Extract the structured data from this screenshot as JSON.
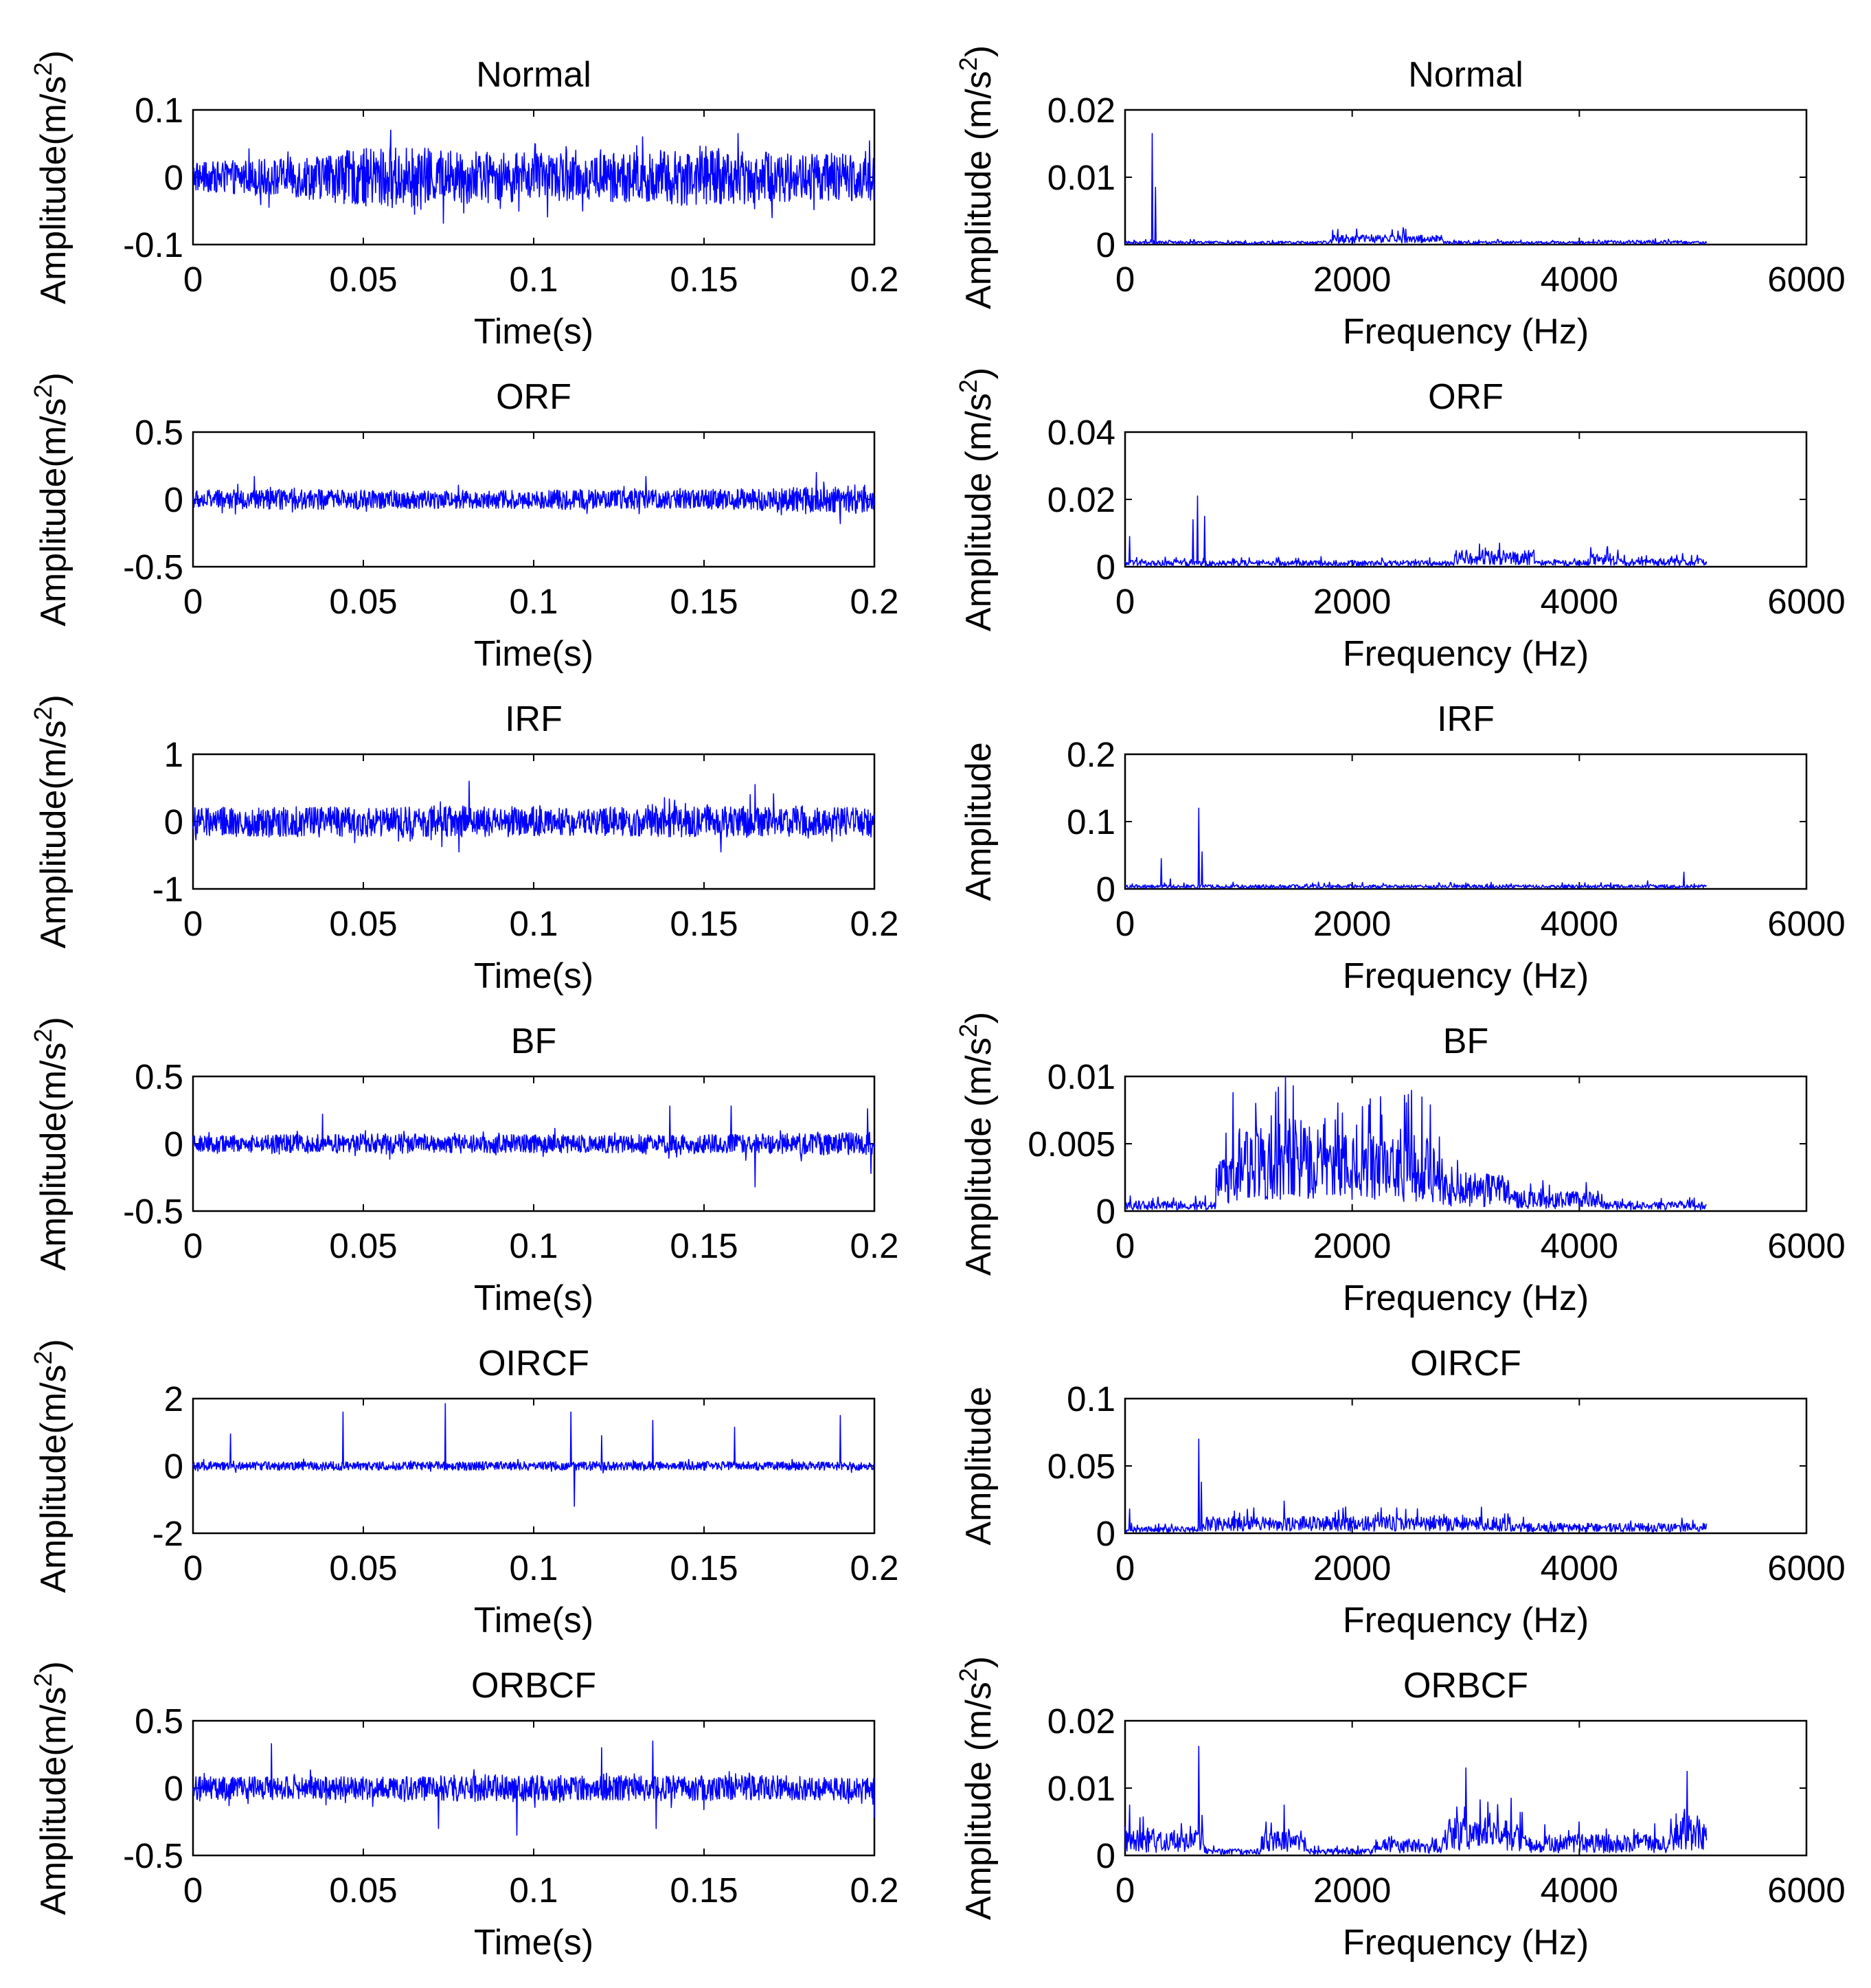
{
  "figure": {
    "trace_color": "#0000ff",
    "axis_color": "#000000"
  },
  "chart_data": [
    {
      "type": "line",
      "domain": "time",
      "title": "Normal",
      "xlabel": "Time(s)",
      "ylabel": "Amplitude(m/s^2)",
      "ylabel_parts": [
        "Amplitude(m/s",
        "2",
        ")"
      ],
      "xlim": [
        0,
        0.2
      ],
      "ylim": [
        -0.1,
        0.1
      ],
      "xticks": [
        0,
        0.05,
        0.1,
        0.15,
        0.2
      ],
      "xtick_labels": [
        "0",
        "0.05",
        "0.1",
        "0.15",
        "0.2"
      ],
      "yticks": [
        -0.1,
        0,
        0.1
      ],
      "ytick_labels": [
        "-0.1",
        "0",
        "0.1"
      ],
      "signal": {
        "duration": 0.2,
        "amplitude_envelope": [
          0.025,
          0.035,
          0.055,
          0.045,
          0.04,
          0.05,
          0.045,
          0.04
        ],
        "spikes": [
          [
            0.058,
            0.07
          ],
          [
            0.065,
            -0.055
          ],
          [
            0.132,
            0.06
          ],
          [
            0.16,
            0.065
          ],
          [
            0.17,
            -0.06
          ]
        ]
      }
    },
    {
      "type": "line",
      "domain": "frequency",
      "title": "Normal",
      "xlabel": "Frequency (Hz)",
      "ylabel": "Amplitude (m/s^2)",
      "ylabel_parts": [
        "Amplitude (m/s",
        "2",
        ")"
      ],
      "xlim": [
        0,
        6000
      ],
      "ylim": [
        0,
        0.02
      ],
      "xticks": [
        0,
        2000,
        4000,
        6000
      ],
      "xtick_labels": [
        "0",
        "2000",
        "4000",
        "6000"
      ],
      "yticks": [
        0,
        0.01,
        0.02
      ],
      "ytick_labels": [
        "0",
        "0.01",
        "0.02"
      ],
      "spectrum": {
        "max_freq": 5120,
        "floor": 0.0004,
        "bands": [
          [
            1800,
            2800,
            0.0012
          ],
          [
            4200,
            4900,
            0.0005
          ]
        ],
        "peaks": [
          [
            240,
            0.0165
          ],
          [
            270,
            0.0085
          ],
          [
            2450,
            0.0025
          ],
          [
            2350,
            0.0022
          ]
        ]
      }
    },
    {
      "type": "line",
      "domain": "time",
      "title": "ORF",
      "xlabel": "Time(s)",
      "ylabel": "Amplitude(m/s^2)",
      "ylabel_parts": [
        "Amplitude(m/s",
        "2",
        ")"
      ],
      "xlim": [
        0,
        0.2
      ],
      "ylim": [
        -0.5,
        0.5
      ],
      "xticks": [
        0,
        0.05,
        0.1,
        0.15,
        0.2
      ],
      "xtick_labels": [
        "0",
        "0.05",
        "0.1",
        "0.15",
        "0.2"
      ],
      "yticks": [
        -0.5,
        0,
        0.5
      ],
      "ytick_labels": [
        "-0.5",
        "0",
        "0.5"
      ],
      "signal": {
        "duration": 0.2,
        "amplitude_envelope": [
          0.08,
          0.09,
          0.08,
          0.08,
          0.09,
          0.08,
          0.1,
          0.13
        ],
        "spikes": [
          [
            0.018,
            0.17
          ],
          [
            0.183,
            0.2
          ],
          [
            0.19,
            -0.18
          ],
          [
            0.133,
            0.17
          ]
        ]
      }
    },
    {
      "type": "line",
      "domain": "frequency",
      "title": "ORF",
      "xlabel": "Frequency (Hz)",
      "ylabel": "Amplitude (m/s^2)",
      "ylabel_parts": [
        "Amplitude (m/s",
        "2",
        ")"
      ],
      "xlim": [
        0,
        6000
      ],
      "ylim": [
        0,
        0.04
      ],
      "xticks": [
        0,
        2000,
        4000,
        6000
      ],
      "xtick_labels": [
        "0",
        "2000",
        "4000",
        "6000"
      ],
      "yticks": [
        0,
        0.02,
        0.04
      ],
      "ytick_labels": [
        "0",
        "0.02",
        "0.04"
      ],
      "spectrum": {
        "max_freq": 5120,
        "floor": 0.0015,
        "bands": [
          [
            2900,
            3600,
            0.004
          ],
          [
            4100,
            4400,
            0.003
          ],
          [
            4500,
            5120,
            0.002
          ]
        ],
        "peaks": [
          [
            40,
            0.009
          ],
          [
            640,
            0.021
          ],
          [
            600,
            0.014
          ],
          [
            700,
            0.015
          ],
          [
            3300,
            0.007
          ],
          [
            4250,
            0.006
          ]
        ]
      }
    },
    {
      "type": "line",
      "domain": "time",
      "title": "IRF",
      "xlabel": "Time(s)",
      "ylabel": "Amplitude(m/s^2)",
      "ylabel_parts": [
        "Amplitude(m/s",
        "2",
        ")"
      ],
      "xlim": [
        0,
        0.2
      ],
      "ylim": [
        -1,
        1
      ],
      "xticks": [
        0,
        0.05,
        0.1,
        0.15,
        0.2
      ],
      "xtick_labels": [
        "0",
        "0.05",
        "0.1",
        "0.15",
        "0.2"
      ],
      "yticks": [
        -1,
        0,
        1
      ],
      "ytick_labels": [
        "-1",
        "0",
        "1"
      ],
      "signal": {
        "duration": 0.2,
        "amplitude_envelope": [
          0.25,
          0.28,
          0.25,
          0.28,
          0.25,
          0.27,
          0.28,
          0.25
        ],
        "spikes": [
          [
            0.081,
            0.6
          ],
          [
            0.078,
            -0.45
          ],
          [
            0.165,
            0.55
          ],
          [
            0.155,
            -0.45
          ]
        ]
      }
    },
    {
      "type": "line",
      "domain": "frequency",
      "title": "IRF",
      "xlabel": "Frequency (Hz)",
      "ylabel": "Amplitude",
      "ylabel_parts": [
        "Amplitude",
        "",
        ""
      ],
      "xlim": [
        0,
        6000
      ],
      "ylim": [
        0,
        0.2
      ],
      "xticks": [
        0,
        2000,
        4000,
        6000
      ],
      "xtick_labels": [
        "0",
        "2000",
        "4000",
        "6000"
      ],
      "yticks": [
        0,
        0.1,
        0.2
      ],
      "ytick_labels": [
        "0",
        "0.1",
        "0.2"
      ],
      "spectrum": {
        "max_freq": 5120,
        "floor": 0.005,
        "bands": [
          [
            4600,
            5120,
            0.004
          ]
        ],
        "peaks": [
          [
            320,
            0.045
          ],
          [
            650,
            0.12
          ],
          [
            680,
            0.055
          ],
          [
            400,
            0.015
          ],
          [
            4920,
            0.025
          ],
          [
            4600,
            0.012
          ]
        ]
      }
    },
    {
      "type": "line",
      "domain": "time",
      "title": "BF",
      "xlabel": "Time(s)",
      "ylabel": "Amplitude(m/s^2)",
      "ylabel_parts": [
        "Amplitude(m/s",
        "2",
        ")"
      ],
      "xlim": [
        0,
        0.2
      ],
      "ylim": [
        -0.5,
        0.5
      ],
      "xticks": [
        0,
        0.05,
        0.1,
        0.15,
        0.2
      ],
      "xtick_labels": [
        "0",
        "0.05",
        "0.1",
        "0.15",
        "0.2"
      ],
      "yticks": [
        -0.5,
        0,
        0.5
      ],
      "ytick_labels": [
        "-0.5",
        "0",
        "0.5"
      ],
      "signal": {
        "duration": 0.2,
        "amplitude_envelope": [
          0.07,
          0.08,
          0.09,
          0.08,
          0.08,
          0.08,
          0.09,
          0.1
        ],
        "spikes": [
          [
            0.038,
            0.22
          ],
          [
            0.14,
            0.28
          ],
          [
            0.158,
            0.28
          ],
          [
            0.165,
            -0.32
          ],
          [
            0.198,
            0.26
          ],
          [
            0.199,
            -0.22
          ]
        ]
      }
    },
    {
      "type": "line",
      "domain": "frequency",
      "title": "BF",
      "xlabel": "Frequency (Hz)",
      "ylabel": "Amplitude (m/s^2)",
      "ylabel_parts": [
        "Amplitude (m/s",
        "2",
        ")"
      ],
      "xlim": [
        0,
        6000
      ],
      "ylim": [
        0,
        0.01
      ],
      "xticks": [
        0,
        2000,
        4000,
        6000
      ],
      "xtick_labels": [
        "0",
        "2000",
        "4000",
        "6000"
      ],
      "yticks": [
        0,
        0.005,
        0.01
      ],
      "ytick_labels": [
        "0",
        "0.005",
        "0.01"
      ],
      "spectrum": {
        "max_freq": 5120,
        "floor": 0.0003,
        "bands": [
          [
            0,
            800,
            0.0006
          ],
          [
            800,
            1000,
            0.0035
          ],
          [
            1000,
            1800,
            0.0055
          ],
          [
            1800,
            2800,
            0.0045
          ],
          [
            2800,
            3400,
            0.0022
          ],
          [
            3400,
            4200,
            0.0012
          ],
          [
            4200,
            5120,
            0.0006
          ]
        ],
        "peaks": [
          [
            950,
            0.0088
          ],
          [
            1350,
            0.0092
          ],
          [
            1480,
            0.0093
          ],
          [
            2250,
            0.0085
          ],
          [
            2460,
            0.0086
          ],
          [
            1150,
            0.008
          ]
        ]
      }
    },
    {
      "type": "line",
      "domain": "time",
      "title": "OIRCF",
      "xlabel": "Time(s)",
      "ylabel": "Amplitude(m/s^2)",
      "ylabel_parts": [
        "Amplitude(m/s",
        "2",
        ")"
      ],
      "xlim": [
        0,
        0.2
      ],
      "ylim": [
        -2,
        2
      ],
      "xticks": [
        0,
        0.05,
        0.1,
        0.15,
        0.2
      ],
      "xtick_labels": [
        "0",
        "0.05",
        "0.1",
        "0.15",
        "0.2"
      ],
      "yticks": [
        -2,
        0,
        2
      ],
      "ytick_labels": [
        "-2",
        "0",
        "2"
      ],
      "signal": {
        "duration": 0.2,
        "amplitude_envelope": [
          0.15,
          0.15,
          0.15,
          0.15,
          0.15,
          0.15,
          0.15,
          0.15
        ],
        "spikes": [
          [
            0.011,
            0.95
          ],
          [
            0.044,
            1.6
          ],
          [
            0.074,
            1.85
          ],
          [
            0.111,
            1.6
          ],
          [
            0.112,
            -1.2
          ],
          [
            0.135,
            1.35
          ],
          [
            0.159,
            1.15
          ],
          [
            0.19,
            1.5
          ],
          [
            0.12,
            0.9
          ]
        ]
      }
    },
    {
      "type": "line",
      "domain": "frequency",
      "title": "OIRCF",
      "xlabel": "Frequency (Hz)",
      "ylabel": "Amplitude",
      "ylabel_parts": [
        "Amplitude",
        "",
        ""
      ],
      "xlim": [
        0,
        6000
      ],
      "ylim": [
        0,
        0.1
      ],
      "xticks": [
        0,
        2000,
        4000,
        6000
      ],
      "xtick_labels": [
        "0",
        "2000",
        "4000",
        "6000"
      ],
      "yticks": [
        0,
        0.05,
        0.1
      ],
      "ytick_labels": [
        "0",
        "0.05",
        "0.1"
      ],
      "spectrum": {
        "max_freq": 5120,
        "floor": 0.004,
        "bands": [
          [
            700,
            3400,
            0.01
          ],
          [
            3400,
            5120,
            0.006
          ]
        ],
        "peaks": [
          [
            650,
            0.07
          ],
          [
            670,
            0.038
          ],
          [
            40,
            0.018
          ],
          [
            1400,
            0.024
          ]
        ]
      }
    },
    {
      "type": "line",
      "domain": "time",
      "title": "ORBCF",
      "xlabel": "Time(s)",
      "ylabel": "Amplitude(m/s^2)",
      "ylabel_parts": [
        "Amplitude(m/s",
        "2",
        ")"
      ],
      "xlim": [
        0,
        0.2
      ],
      "ylim": [
        -0.5,
        0.5
      ],
      "xticks": [
        0,
        0.05,
        0.1,
        0.15,
        0.2
      ],
      "xtick_labels": [
        "0",
        "0.05",
        "0.1",
        "0.15",
        "0.2"
      ],
      "yticks": [
        -0.5,
        0,
        0.5
      ],
      "ytick_labels": [
        "-0.5",
        "0",
        "0.5"
      ],
      "signal": {
        "duration": 0.2,
        "amplitude_envelope": [
          0.1,
          0.1,
          0.1,
          0.12,
          0.11,
          0.11,
          0.11,
          0.11
        ],
        "spikes": [
          [
            0.023,
            0.33
          ],
          [
            0.072,
            0.3
          ],
          [
            0.072,
            -0.3
          ],
          [
            0.095,
            -0.35
          ],
          [
            0.12,
            0.3
          ],
          [
            0.135,
            0.35
          ],
          [
            0.136,
            -0.3
          ],
          [
            0.2,
            -0.22
          ]
        ]
      }
    },
    {
      "type": "line",
      "domain": "frequency",
      "title": "ORBCF",
      "xlabel": "Frequency (Hz)",
      "ylabel": "Amplitude (m/s^2)",
      "ylabel_parts": [
        "Amplitude (m/s",
        "2",
        ")"
      ],
      "xlim": [
        0,
        6000
      ],
      "ylim": [
        0,
        0.02
      ],
      "xticks": [
        0,
        2000,
        4000,
        6000
      ],
      "xtick_labels": [
        "0",
        "2000",
        "4000",
        "6000"
      ],
      "yticks": [
        0,
        0.01,
        0.02
      ],
      "ytick_labels": [
        "0",
        "0.01",
        "0.02"
      ],
      "spectrum": {
        "max_freq": 5120,
        "floor": 0.0008,
        "bands": [
          [
            0,
            700,
            0.003
          ],
          [
            1200,
            1600,
            0.003
          ],
          [
            2200,
            2800,
            0.002
          ],
          [
            2800,
            3500,
            0.0045
          ],
          [
            3500,
            4800,
            0.0025
          ],
          [
            4800,
            5120,
            0.005
          ]
        ],
        "peaks": [
          [
            650,
            0.0162
          ],
          [
            40,
            0.0075
          ],
          [
            1400,
            0.0075
          ],
          [
            3000,
            0.013
          ],
          [
            3400,
            0.0085
          ],
          [
            4950,
            0.0125
          ]
        ]
      }
    }
  ]
}
